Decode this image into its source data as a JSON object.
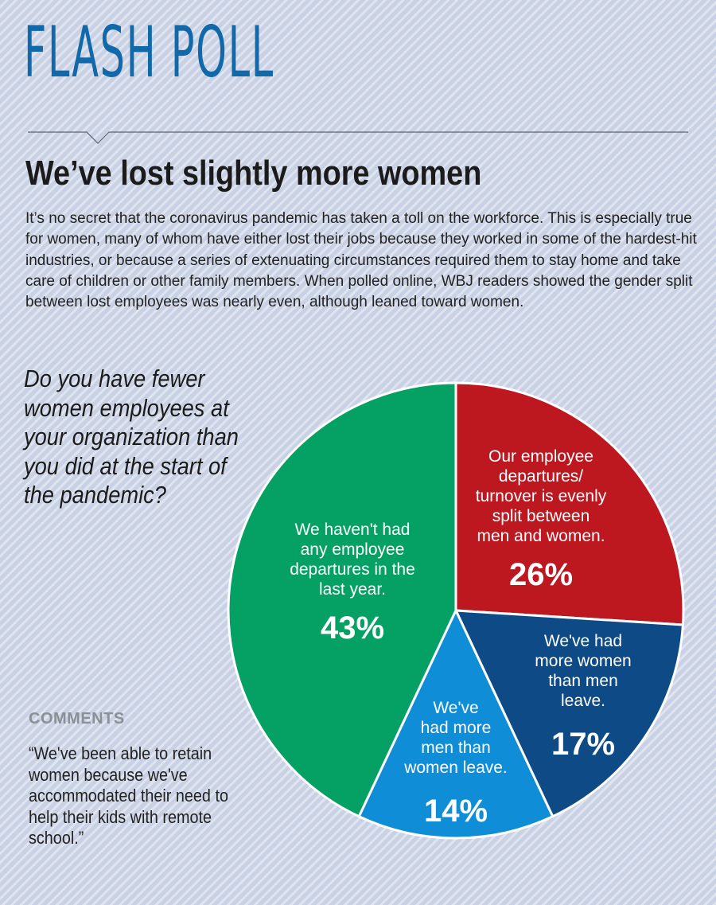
{
  "masthead": "FLASH POLL",
  "headline": "We’ve lost slightly more women",
  "intro": "It’s no secret that the coronavirus pandemic has taken a toll on the workforce. This is especially true for women, many of whom have either lost their jobs because they worked in some of the hardest-hit industries, or because a series of extenuating circumstances required them to stay home and take care of children or other family members. When polled online, WBJ readers showed the gender split between lost employees was nearly even, although leaned toward women.",
  "question": "Do you have fewer women employees at your organization than you did at the start of the pandemic?",
  "comments": {
    "title": "COMMENTS",
    "quote": "“We've been able to retain women because we've accommodated their need to help their kids with remote  school.”"
  },
  "colors": {
    "masthead": "#1269a9",
    "green": "#05a164",
    "red": "#bd1720",
    "navy": "#0e4b86",
    "blue": "#0f8dd6"
  },
  "chart_data": {
    "type": "pie",
    "unit": "%",
    "slices": [
      {
        "label": "Our employee departures/ turnover is evenly split between men and women.",
        "label_lines": [
          "Our employee",
          "departures/",
          "turnover is evenly",
          "split between",
          "men and women."
        ],
        "value": 26,
        "value_text": "26%",
        "color": "#bd1720"
      },
      {
        "label": "We've had more women than men leave.",
        "label_lines": [
          "We've had",
          "more women",
          "than men",
          "leave."
        ],
        "value": 17,
        "value_text": "17%",
        "color": "#0e4b86"
      },
      {
        "label": "We've had more men than women leave.",
        "label_lines": [
          "We've",
          "had more",
          "men than",
          "women leave."
        ],
        "value": 14,
        "value_text": "14%",
        "color": "#0f8dd6"
      },
      {
        "label": "We haven't had any employee departures in the last year.",
        "label_lines": [
          "We haven't had",
          "any employee",
          "departures in the",
          "last year."
        ],
        "value": 43,
        "value_text": "43%",
        "color": "#05a164"
      }
    ]
  }
}
